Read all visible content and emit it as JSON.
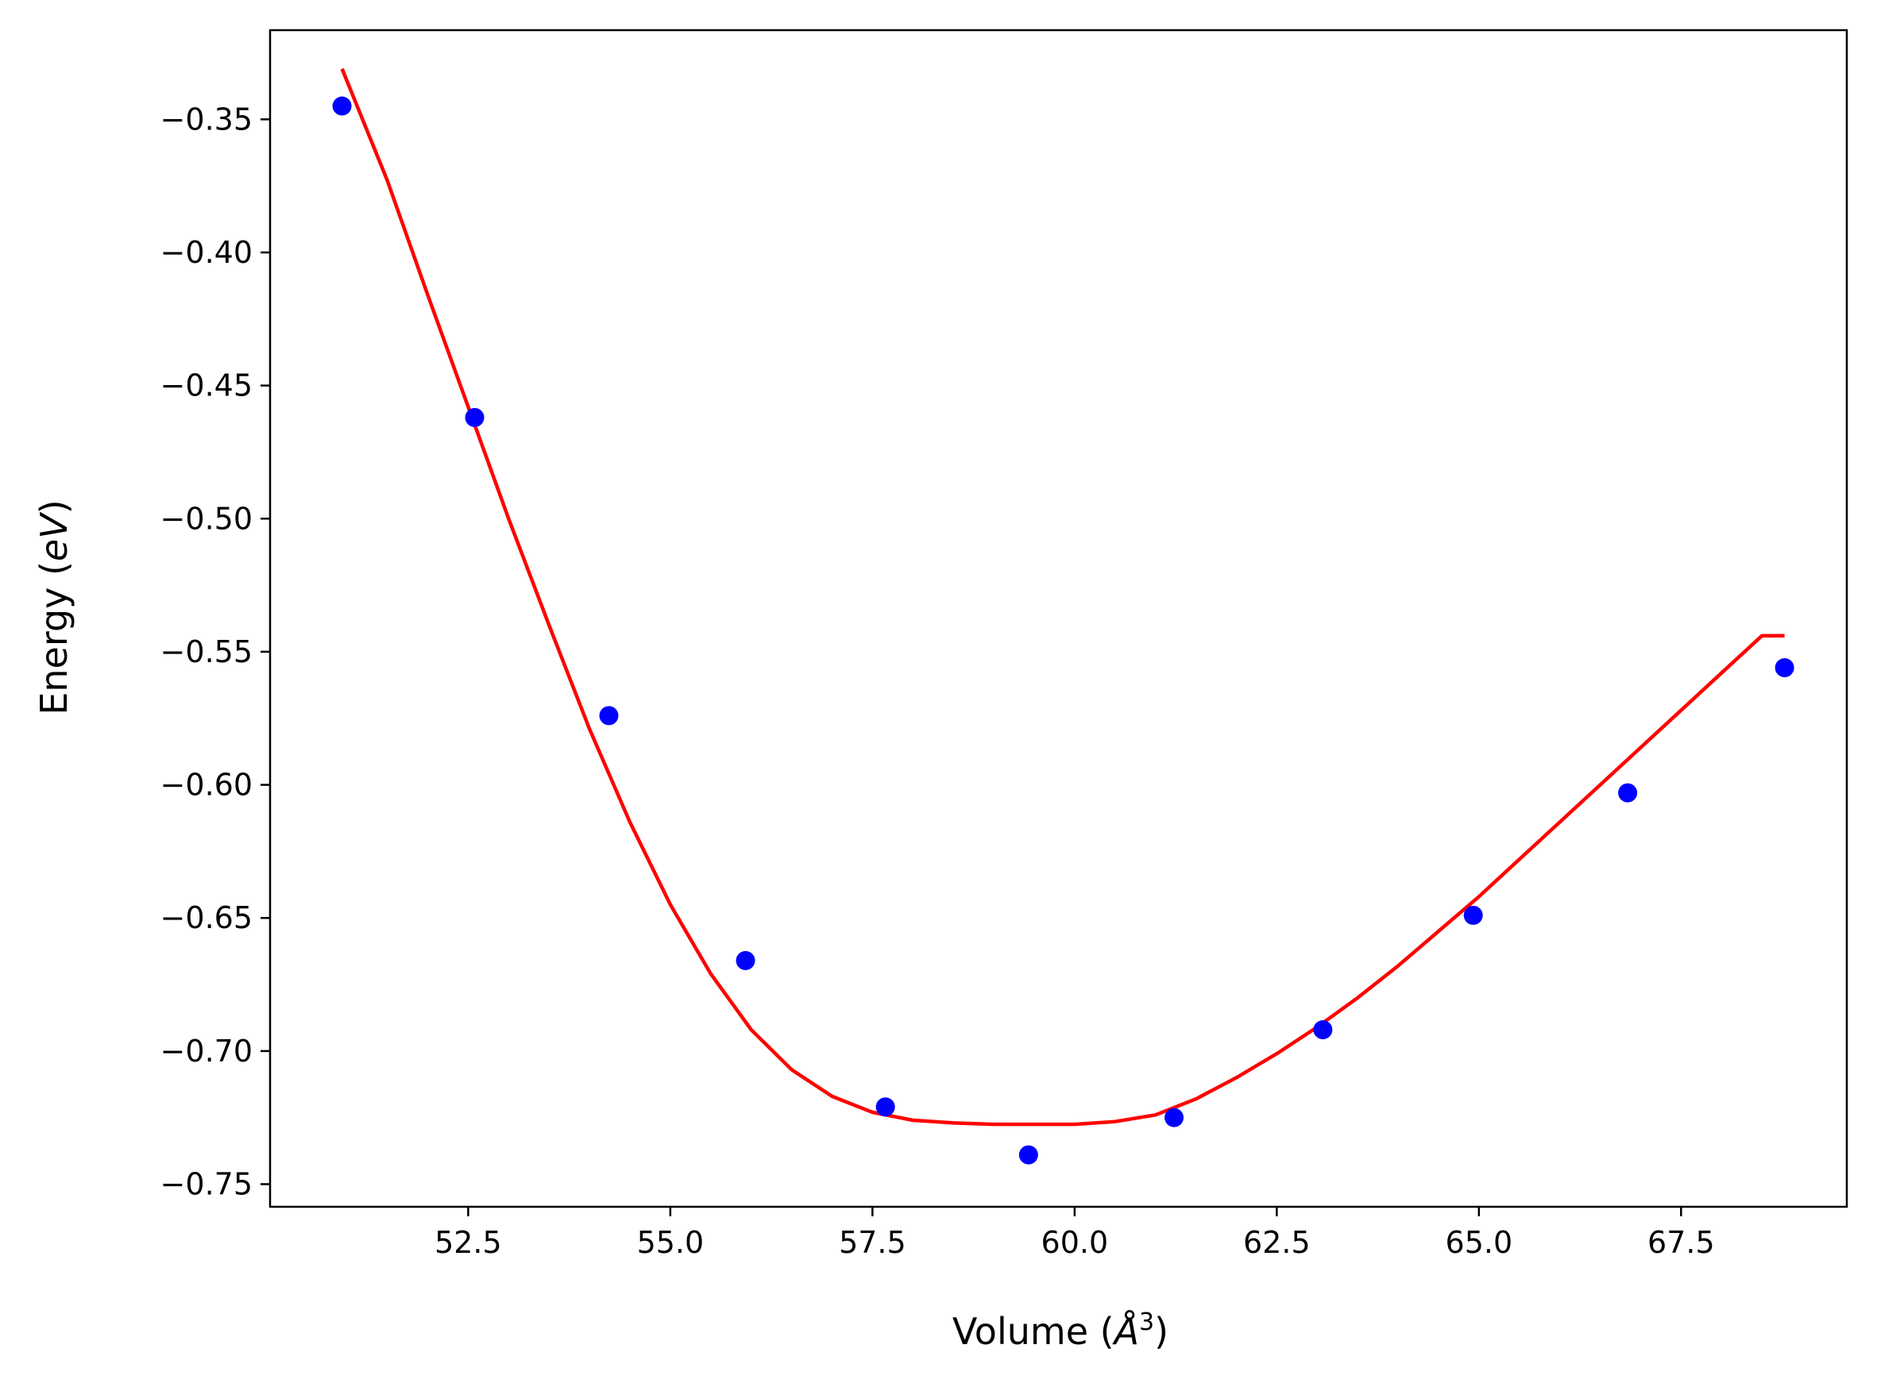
{
  "chart_data": {
    "type": "scatter",
    "xlabel": "Volume (Å³)",
    "xlabel_parts": {
      "prefix": "Volume (",
      "symbol": "Å",
      "exponent": "3",
      "suffix": ")"
    },
    "ylabel": "Energy (eV)",
    "ylabel_parts": {
      "prefix": "Energy (",
      "italic": "eV",
      "suffix": ")"
    },
    "xlim": [
      50.05,
      69.55
    ],
    "ylim": [
      -0.7585,
      -0.3165
    ],
    "xticks": [
      {
        "value": 52.5,
        "label": "52.5"
      },
      {
        "value": 55.0,
        "label": "55.0"
      },
      {
        "value": 57.5,
        "label": "57.5"
      },
      {
        "value": 60.0,
        "label": "60.0"
      },
      {
        "value": 62.5,
        "label": "62.5"
      },
      {
        "value": 65.0,
        "label": "65.0"
      },
      {
        "value": 67.5,
        "label": "67.5"
      }
    ],
    "yticks": [
      {
        "value": -0.35,
        "label": "−0.35"
      },
      {
        "value": -0.4,
        "label": "−0.40"
      },
      {
        "value": -0.45,
        "label": "−0.45"
      },
      {
        "value": -0.5,
        "label": "−0.50"
      },
      {
        "value": -0.55,
        "label": "−0.55"
      },
      {
        "value": -0.6,
        "label": "−0.60"
      },
      {
        "value": -0.65,
        "label": "−0.65"
      },
      {
        "value": -0.7,
        "label": "−0.70"
      },
      {
        "value": -0.75,
        "label": "−0.75"
      }
    ],
    "grid": false,
    "legend": "none",
    "series": [
      {
        "kind": "scatter",
        "color": "#0000ff",
        "points": [
          {
            "x": 50.94,
            "y": -0.345
          },
          {
            "x": 52.58,
            "y": -0.462
          },
          {
            "x": 54.24,
            "y": -0.574
          },
          {
            "x": 55.93,
            "y": -0.666
          },
          {
            "x": 57.66,
            "y": -0.721
          },
          {
            "x": 59.43,
            "y": -0.739
          },
          {
            "x": 61.23,
            "y": -0.725
          },
          {
            "x": 63.07,
            "y": -0.692
          },
          {
            "x": 64.93,
            "y": -0.649
          },
          {
            "x": 66.84,
            "y": -0.603
          },
          {
            "x": 68.78,
            "y": -0.556
          }
        ]
      },
      {
        "kind": "line",
        "color": "#ff0000",
        "x": [
          50.94,
          51.5,
          52.0,
          52.5,
          53.0,
          53.5,
          54.0,
          54.5,
          55.0,
          55.5,
          56.0,
          56.5,
          57.0,
          57.5,
          58.0,
          58.5,
          59.0,
          59.5,
          60.0,
          60.5,
          61.0,
          61.5,
          62.0,
          62.5,
          63.0,
          63.5,
          64.0,
          64.5,
          65.0,
          65.5,
          66.0,
          66.5,
          67.0,
          67.5,
          68.0,
          68.5,
          68.78
        ],
        "y": [
          -0.331,
          -0.373,
          -0.416,
          -0.458,
          -0.5,
          -0.54,
          -0.579,
          -0.614,
          -0.645,
          -0.671,
          -0.692,
          -0.707,
          -0.717,
          -0.723,
          -0.726,
          -0.727,
          -0.7275,
          -0.7275,
          -0.7275,
          -0.7265,
          -0.724,
          -0.718,
          -0.71,
          -0.701,
          -0.691,
          -0.68,
          -0.668,
          -0.655,
          -0.642,
          -0.628,
          -0.614,
          -0.6,
          -0.586,
          -0.572,
          -0.558,
          -0.544,
          -0.544
        ]
      }
    ]
  }
}
